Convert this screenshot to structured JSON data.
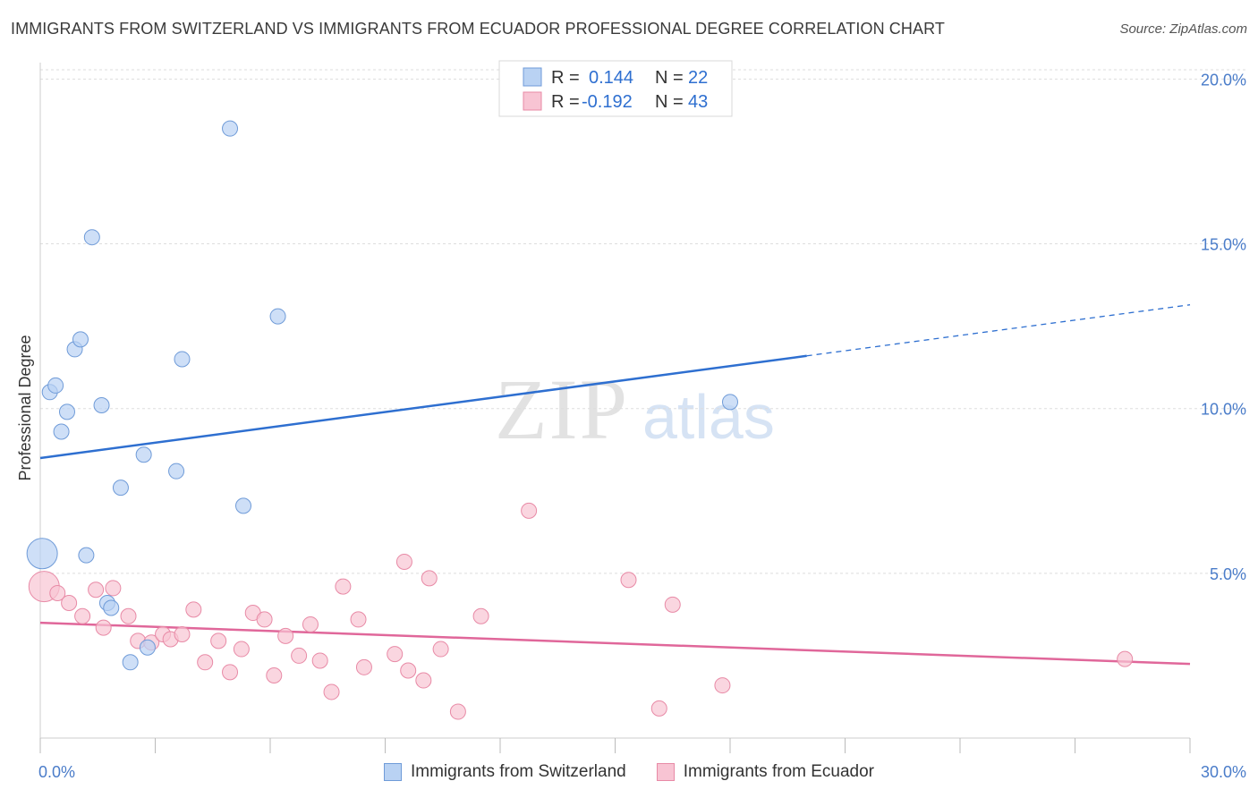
{
  "header": {
    "title": "IMMIGRANTS FROM SWITZERLAND VS IMMIGRANTS FROM ECUADOR PROFESSIONAL DEGREE CORRELATION CHART",
    "source": "Source: ZipAtlas.com"
  },
  "watermark": {
    "zip": "ZIP",
    "atlas": "atlas"
  },
  "colors": {
    "blue_fill": "#b9d2f3",
    "blue_stroke": "#6f9bd8",
    "blue_line": "#2e6fd0",
    "pink_fill": "#f8c4d3",
    "pink_stroke": "#e88aa6",
    "pink_line": "#e0679a",
    "grid": "#dddddd",
    "tick_text": "#4a7cc9"
  },
  "legend": {
    "rows": [
      {
        "r_label": "R =",
        "r_value": "0.144",
        "n_label": "N =",
        "n_value": "22"
      },
      {
        "r_label": "R =",
        "r_value": "-0.192",
        "n_label": "N =",
        "n_value": "43"
      }
    ]
  },
  "chart_data": {
    "type": "scatter",
    "title": "IMMIGRANTS FROM SWITZERLAND VS IMMIGRANTS FROM ECUADOR PROFESSIONAL DEGREE CORRELATION CHART",
    "xlabel": "",
    "ylabel": "Professional Degree",
    "xlim": [
      0,
      30
    ],
    "ylim": [
      0,
      20.5
    ],
    "x_tick_labels": [
      "0.0%",
      "30.0%"
    ],
    "y_ticks": [
      5,
      10,
      15,
      20
    ],
    "y_tick_labels": [
      "5.0%",
      "10.0%",
      "15.0%",
      "20.0%"
    ],
    "grid": true,
    "legend_position": "top-center",
    "series": [
      {
        "name": "Immigrants from Switzerland",
        "color": "#6f9bd8",
        "r": 0.144,
        "n": 22,
        "trend": {
          "x0": 0,
          "y0": 8.5,
          "x1": 20,
          "y1": 11.6,
          "dashed_to_x": 30,
          "dashed_to_y": 13.15
        },
        "points": [
          {
            "x": 0.05,
            "y": 5.6,
            "big": true
          },
          {
            "x": 0.25,
            "y": 10.5
          },
          {
            "x": 0.4,
            "y": 10.7
          },
          {
            "x": 0.55,
            "y": 9.3
          },
          {
            "x": 0.7,
            "y": 9.9
          },
          {
            "x": 0.9,
            "y": 11.8
          },
          {
            "x": 1.05,
            "y": 12.1
          },
          {
            "x": 1.2,
            "y": 5.55
          },
          {
            "x": 1.35,
            "y": 15.2
          },
          {
            "x": 1.6,
            "y": 10.1
          },
          {
            "x": 1.75,
            "y": 4.1
          },
          {
            "x": 1.85,
            "y": 3.95
          },
          {
            "x": 2.1,
            "y": 7.6
          },
          {
            "x": 2.35,
            "y": 2.3
          },
          {
            "x": 2.7,
            "y": 8.6
          },
          {
            "x": 2.8,
            "y": 2.75
          },
          {
            "x": 3.55,
            "y": 8.1
          },
          {
            "x": 3.7,
            "y": 11.5
          },
          {
            "x": 4.95,
            "y": 18.5
          },
          {
            "x": 5.3,
            "y": 7.05
          },
          {
            "x": 6.2,
            "y": 12.8
          },
          {
            "x": 18.0,
            "y": 10.2
          }
        ]
      },
      {
        "name": "Immigrants from Ecuador",
        "color": "#e88aa6",
        "r": -0.192,
        "n": 43,
        "trend": {
          "x0": 0,
          "y0": 3.5,
          "x1": 30,
          "y1": 2.25
        },
        "points": [
          {
            "x": 0.1,
            "y": 4.6,
            "big": true
          },
          {
            "x": 0.45,
            "y": 4.4
          },
          {
            "x": 0.75,
            "y": 4.1
          },
          {
            "x": 1.1,
            "y": 3.7
          },
          {
            "x": 1.45,
            "y": 4.5
          },
          {
            "x": 1.65,
            "y": 3.35
          },
          {
            "x": 1.9,
            "y": 4.55
          },
          {
            "x": 2.3,
            "y": 3.7
          },
          {
            "x": 2.55,
            "y": 2.95
          },
          {
            "x": 2.9,
            "y": 2.9
          },
          {
            "x": 3.2,
            "y": 3.15
          },
          {
            "x": 3.4,
            "y": 3.0
          },
          {
            "x": 3.7,
            "y": 3.15
          },
          {
            "x": 4.0,
            "y": 3.9
          },
          {
            "x": 4.3,
            "y": 2.3
          },
          {
            "x": 4.65,
            "y": 2.95
          },
          {
            "x": 4.95,
            "y": 2.0
          },
          {
            "x": 5.25,
            "y": 2.7
          },
          {
            "x": 5.55,
            "y": 3.8
          },
          {
            "x": 5.85,
            "y": 3.6
          },
          {
            "x": 6.1,
            "y": 1.9
          },
          {
            "x": 6.4,
            "y": 3.1
          },
          {
            "x": 6.75,
            "y": 2.5
          },
          {
            "x": 7.05,
            "y": 3.45
          },
          {
            "x": 7.3,
            "y": 2.35
          },
          {
            "x": 7.6,
            "y": 1.4
          },
          {
            "x": 7.9,
            "y": 4.6
          },
          {
            "x": 8.3,
            "y": 3.6
          },
          {
            "x": 8.45,
            "y": 2.15
          },
          {
            "x": 9.25,
            "y": 2.55
          },
          {
            "x": 9.5,
            "y": 5.35
          },
          {
            "x": 9.6,
            "y": 2.05
          },
          {
            "x": 10.0,
            "y": 1.75
          },
          {
            "x": 10.15,
            "y": 4.85
          },
          {
            "x": 10.45,
            "y": 2.7
          },
          {
            "x": 10.9,
            "y": 0.8
          },
          {
            "x": 11.5,
            "y": 3.7
          },
          {
            "x": 12.75,
            "y": 6.9
          },
          {
            "x": 15.35,
            "y": 4.8
          },
          {
            "x": 16.15,
            "y": 0.9
          },
          {
            "x": 16.5,
            "y": 4.05
          },
          {
            "x": 17.8,
            "y": 1.6
          },
          {
            "x": 28.3,
            "y": 2.4
          }
        ]
      }
    ]
  }
}
